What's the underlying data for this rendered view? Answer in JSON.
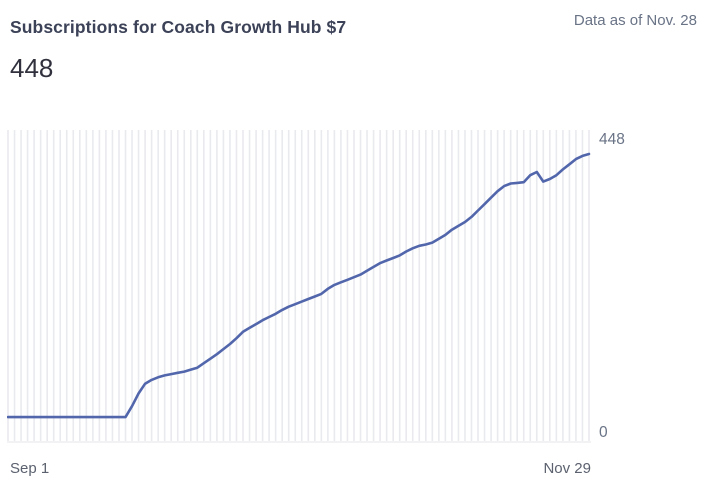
{
  "header": {
    "title": "Subscriptions for Coach Growth Hub $7",
    "big_number": "448",
    "data_as_of": "Data as of Nov. 28"
  },
  "chart_data": {
    "type": "line",
    "title": "Subscriptions for Coach Growth Hub $7",
    "x_start_label": "Sep 1",
    "x_end_label": "Nov 29",
    "y_max_label": "448",
    "y_min_label": "0",
    "ylim": [
      0,
      448
    ],
    "x_unit": "day",
    "x_range": [
      "Sep 1",
      "Nov 29"
    ],
    "grid": "vertical-daily",
    "legend": "none",
    "line_color": "#5266ac",
    "grid_color": "#e9eaee",
    "axis_line_color": "#e4e5e9",
    "values": [
      38,
      38,
      38,
      38,
      38,
      38,
      38,
      38,
      38,
      38,
      38,
      38,
      38,
      38,
      38,
      38,
      38,
      38,
      38,
      55,
      75,
      90,
      96,
      100,
      103,
      105,
      107,
      109,
      112,
      115,
      122,
      129,
      136,
      144,
      152,
      161,
      171,
      177,
      183,
      189,
      194,
      199,
      205,
      210,
      214,
      218,
      222,
      226,
      230,
      238,
      244,
      248,
      252,
      256,
      260,
      266,
      272,
      278,
      282,
      286,
      290,
      296,
      301,
      305,
      307,
      310,
      316,
      322,
      330,
      336,
      342,
      350,
      360,
      370,
      380,
      390,
      398,
      402,
      403,
      404,
      415,
      420,
      405,
      409,
      415,
      424,
      432,
      440,
      445,
      448
    ]
  }
}
